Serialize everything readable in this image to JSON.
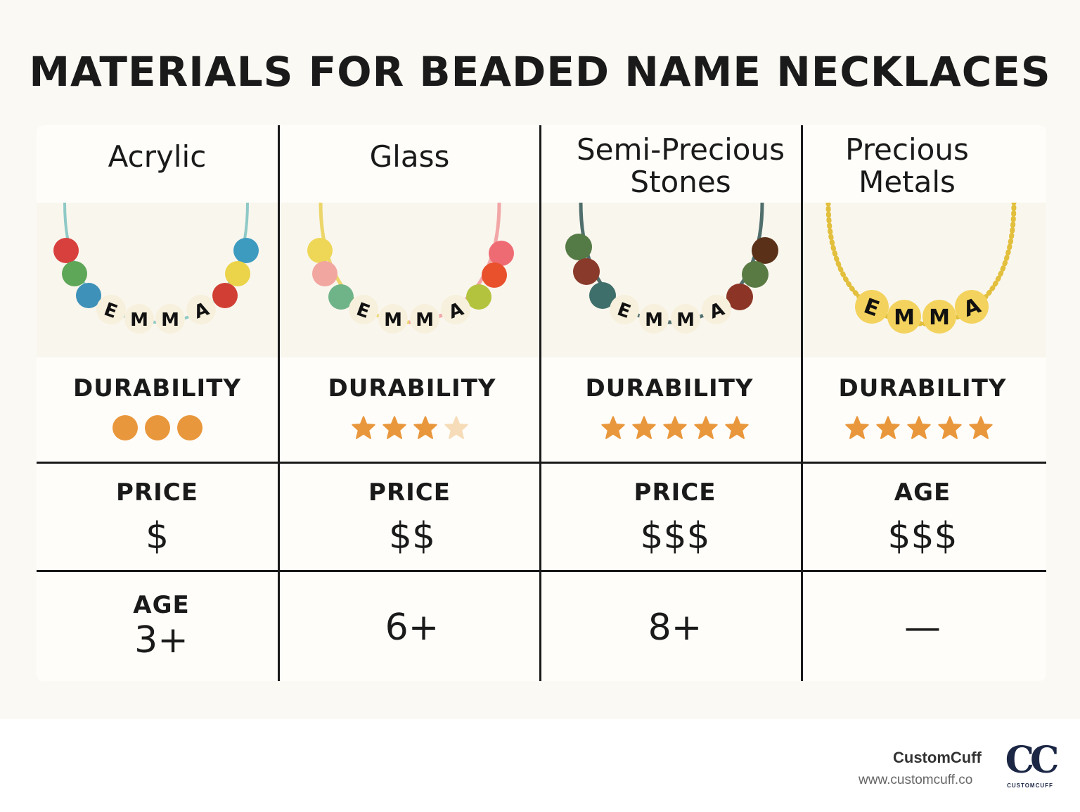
{
  "title": "MATERIALS FOR BEADED NAME NECKLACES",
  "bead_name": "EMMA",
  "columns": [
    {
      "name": "Acrylic",
      "durability_label": "DURABILITY",
      "durability": {
        "kind": "dots",
        "score": 3,
        "max": 3
      },
      "price_label": "PRICE",
      "price": "$",
      "age_label": "AGE",
      "age": "3+",
      "beads": {
        "cord": "#8ec9c6",
        "left": [
          "#d8403d",
          "#5ea658",
          "#3e91b8"
        ],
        "right": [
          "#d13f34",
          "#ebd34a",
          "#3e9bc0"
        ],
        "letter_bead": "#f7f0dc"
      }
    },
    {
      "name": "Glass",
      "durability_label": "DURABILITY",
      "durability": {
        "kind": "stars",
        "score": 3,
        "max": 4
      },
      "price_label": "PRICE",
      "price": "$$",
      "age": "6+",
      "beads": {
        "cord_left": "#ecd66a",
        "cord_right": "#f2a6a6",
        "left": [
          "#eed757",
          "#f2a6a0",
          "#6fb488"
        ],
        "right": [
          "#b4c33e",
          "#e9502c",
          "#ef6b73"
        ],
        "letter_bead": "#f7f0dc"
      }
    },
    {
      "name": "Semi-Precious Stones",
      "durability_label": "DURABILITY",
      "durability": {
        "kind": "stars",
        "score": 5,
        "max": 5
      },
      "price_label": "PRICE",
      "price": "$$$",
      "age": "8+",
      "beads": {
        "cord": "#4f6e6c",
        "left": [
          "#547a45",
          "#8a3a2a",
          "#3f6f6b"
        ],
        "right": [
          "#8c3526",
          "#5a7a44",
          "#5a3018"
        ],
        "letter_bead": "#f7f0dc"
      }
    },
    {
      "name": "Precious Metals",
      "durability_label": "DURABILITY",
      "durability": {
        "kind": "stars",
        "score": 5,
        "max": 5
      },
      "price_label": "AGE",
      "price": "$$$",
      "age": "—",
      "beads": {
        "chain": "#e2bf3c",
        "letter_bead": "#f3d35e"
      }
    }
  ],
  "colors": {
    "accent": "#e9973c",
    "accent_faded": "#f6dcb8",
    "grid_lines": "#1a1a1a",
    "background": "#fbf9f4"
  },
  "brand": {
    "name": "CustomCuff",
    "url": "www.customcuff.co",
    "logo_mark": "CC",
    "logo_sub": "CUSTOMCUFF"
  }
}
